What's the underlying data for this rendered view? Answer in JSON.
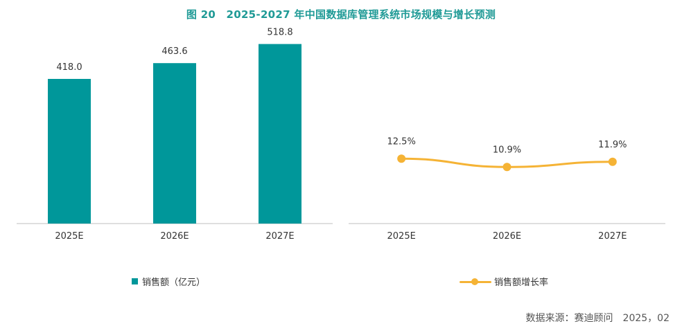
{
  "title": "图 20　2025-2027 年中国数据库管理系统市场规模与增长预测",
  "source": "数据来源：赛迪顾问　2025，02",
  "colors": {
    "bar": "#00979a",
    "line": "#f5b335",
    "title": "#1f9a96",
    "axis": "#bfbfbf"
  },
  "chart_data": [
    {
      "type": "bar",
      "categories": [
        "2025E",
        "2026E",
        "2027E"
      ],
      "series": [
        {
          "name": "销售额（亿元）",
          "values": [
            418.0,
            463.6,
            518.8
          ]
        }
      ],
      "data_labels": [
        "418.0",
        "463.6",
        "518.8"
      ],
      "ylim": [
        0,
        600
      ],
      "legend": "bottom"
    },
    {
      "type": "line",
      "categories": [
        "2025E",
        "2026E",
        "2027E"
      ],
      "series": [
        {
          "name": "销售额增长率",
          "values": [
            12.5,
            10.9,
            11.9
          ]
        }
      ],
      "data_labels": [
        "12.5%",
        "10.9%",
        "11.9%"
      ],
      "ylim": [
        0,
        40
      ],
      "legend": "bottom"
    }
  ]
}
